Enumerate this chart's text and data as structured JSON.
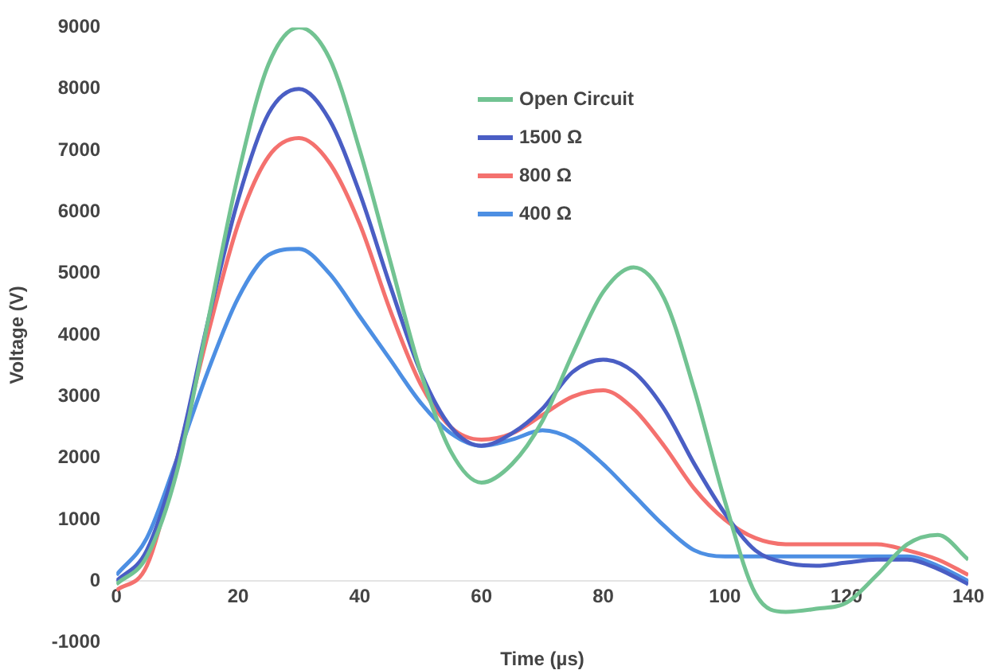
{
  "chart_data": {
    "type": "line",
    "xlabel": "Time (µs)",
    "ylabel": "Voltage (V)",
    "x": [
      0,
      5,
      10,
      15,
      20,
      25,
      30,
      35,
      40,
      45,
      50,
      55,
      60,
      65,
      70,
      75,
      80,
      85,
      90,
      95,
      100,
      105,
      110,
      115,
      120,
      125,
      130,
      135,
      140
    ],
    "series": [
      {
        "name": "Open Circuit",
        "color": "#72c392",
        "values": [
          -50,
          400,
          1800,
          4200,
          6600,
          8400,
          9000,
          8500,
          7000,
          5200,
          3400,
          2100,
          1600,
          1900,
          2600,
          3700,
          4700,
          5100,
          4600,
          3100,
          1300,
          -200,
          -500,
          -450,
          -350,
          100,
          600,
          750,
          350
        ]
      },
      {
        "name": "1500 Ω",
        "color": "#4a5ec4",
        "values": [
          0,
          500,
          2000,
          4200,
          6200,
          7600,
          8000,
          7500,
          6300,
          4800,
          3400,
          2500,
          2200,
          2400,
          2800,
          3400,
          3600,
          3400,
          2800,
          1900,
          1100,
          500,
          300,
          250,
          300,
          350,
          350,
          200,
          -50
        ]
      },
      {
        "name": "800 Ω",
        "color": "#f4716e",
        "values": [
          -150,
          250,
          2000,
          4000,
          5800,
          6900,
          7200,
          6800,
          5800,
          4400,
          3200,
          2500,
          2300,
          2400,
          2700,
          3000,
          3100,
          2800,
          2200,
          1500,
          1000,
          700,
          600,
          600,
          600,
          600,
          500,
          350,
          100
        ]
      },
      {
        "name": "400 Ω",
        "color": "#4d8fe3",
        "values": [
          100,
          700,
          2000,
          3400,
          4600,
          5300,
          5400,
          5000,
          4300,
          3600,
          2900,
          2400,
          2200,
          2300,
          2450,
          2300,
          1900,
          1400,
          900,
          500,
          400,
          400,
          400,
          400,
          400,
          400,
          400,
          250,
          0
        ]
      }
    ],
    "xlim": [
      0,
      140
    ],
    "xticks": [
      0,
      20,
      40,
      60,
      80,
      100,
      120,
      140
    ],
    "ylim": [
      -1000,
      9000
    ],
    "yticks": [
      -1000,
      0,
      1000,
      2000,
      3000,
      4000,
      5000,
      6000,
      7000,
      8000,
      9000
    ],
    "legend": "top",
    "marker": "none",
    "line_style": "solid",
    "grid": false
  }
}
